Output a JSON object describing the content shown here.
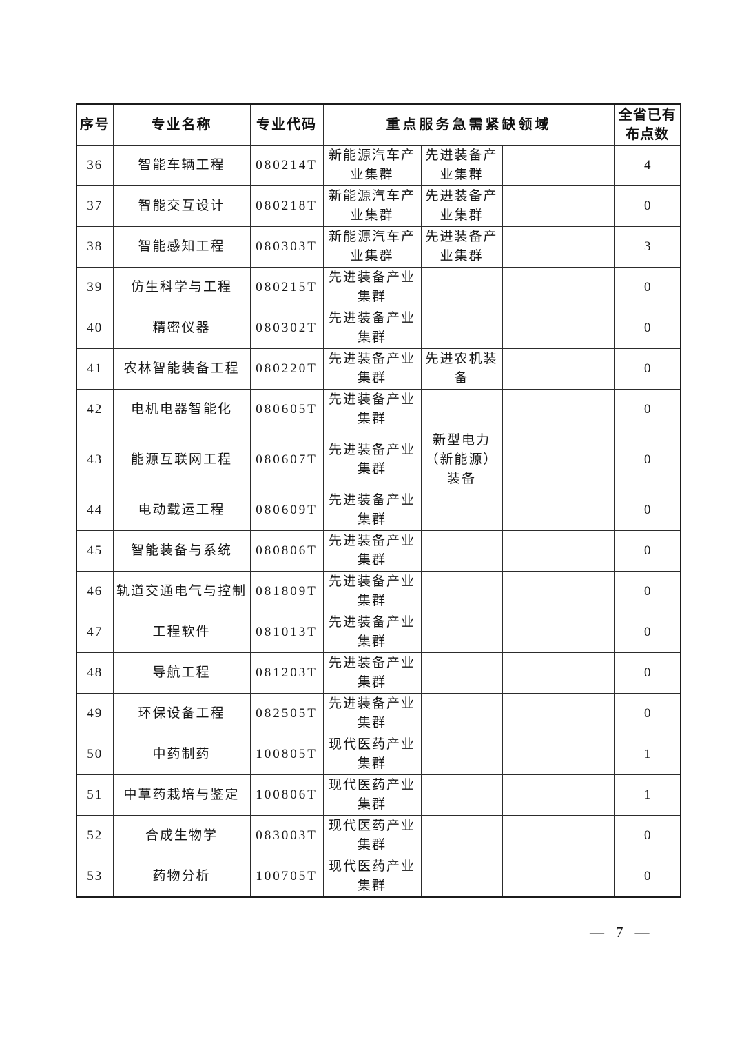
{
  "table": {
    "headers": {
      "seq": "序号",
      "name": "专业名称",
      "code": "专业代码",
      "field": "重点服务急需紧缺领域",
      "count": "全省已有\n布点数"
    },
    "rows": [
      {
        "seq": "36",
        "name": "智能车辆工程",
        "code": "080214T",
        "f1": "新能源汽车产\n业集群",
        "f2": "先进装备产\n业集群",
        "f3": "",
        "count": "4"
      },
      {
        "seq": "37",
        "name": "智能交互设计",
        "code": "080218T",
        "f1": "新能源汽车产\n业集群",
        "f2": "先进装备产\n业集群",
        "f3": "",
        "count": "0"
      },
      {
        "seq": "38",
        "name": "智能感知工程",
        "code": "080303T",
        "f1": "新能源汽车产\n业集群",
        "f2": "先进装备产\n业集群",
        "f3": "",
        "count": "3"
      },
      {
        "seq": "39",
        "name": "仿生科学与工程",
        "code": "080215T",
        "f1": "先进装备产业\n集群",
        "f2": "",
        "f3": "",
        "count": "0"
      },
      {
        "seq": "40",
        "name": "精密仪器",
        "code": "080302T",
        "f1": "先进装备产业\n集群",
        "f2": "",
        "f3": "",
        "count": "0"
      },
      {
        "seq": "41",
        "name": "农林智能装备工程",
        "code": "080220T",
        "f1": "先进装备产业\n集群",
        "f2": "先进农机装\n备",
        "f3": "",
        "count": "0"
      },
      {
        "seq": "42",
        "name": "电机电器智能化",
        "code": "080605T",
        "f1": "先进装备产业\n集群",
        "f2": "",
        "f3": "",
        "count": "0"
      },
      {
        "seq": "43",
        "name": "能源互联网工程",
        "code": "080607T",
        "f1": "先进装备产业\n集群",
        "f2": "新型电力\n（新能源）\n装备",
        "f3": "",
        "count": "0"
      },
      {
        "seq": "44",
        "name": "电动载运工程",
        "code": "080609T",
        "f1": "先进装备产业\n集群",
        "f2": "",
        "f3": "",
        "count": "0"
      },
      {
        "seq": "45",
        "name": "智能装备与系统",
        "code": "080806T",
        "f1": "先进装备产业\n集群",
        "f2": "",
        "f3": "",
        "count": "0"
      },
      {
        "seq": "46",
        "name": "轨道交通电气与控制",
        "code": "081809T",
        "f1": "先进装备产业\n集群",
        "f2": "",
        "f3": "",
        "count": "0"
      },
      {
        "seq": "47",
        "name": "工程软件",
        "code": "081013T",
        "f1": "先进装备产业\n集群",
        "f2": "",
        "f3": "",
        "count": "0"
      },
      {
        "seq": "48",
        "name": "导航工程",
        "code": "081203T",
        "f1": "先进装备产业\n集群",
        "f2": "",
        "f3": "",
        "count": "0"
      },
      {
        "seq": "49",
        "name": "环保设备工程",
        "code": "082505T",
        "f1": "先进装备产业\n集群",
        "f2": "",
        "f3": "",
        "count": "0"
      },
      {
        "seq": "50",
        "name": "中药制药",
        "code": "100805T",
        "f1": "现代医药产业\n集群",
        "f2": "",
        "f3": "",
        "count": "1"
      },
      {
        "seq": "51",
        "name": "中草药栽培与鉴定",
        "code": "100806T",
        "f1": "现代医药产业\n集群",
        "f2": "",
        "f3": "",
        "count": "1"
      },
      {
        "seq": "52",
        "name": "合成生物学",
        "code": "083003T",
        "f1": "现代医药产业\n集群",
        "f2": "",
        "f3": "",
        "count": "0"
      },
      {
        "seq": "53",
        "name": "药物分析",
        "code": "100705T",
        "f1": "现代医药产业\n集群",
        "f2": "",
        "f3": "",
        "count": "0"
      }
    ]
  },
  "footer": {
    "dash": "—",
    "page": "7"
  }
}
